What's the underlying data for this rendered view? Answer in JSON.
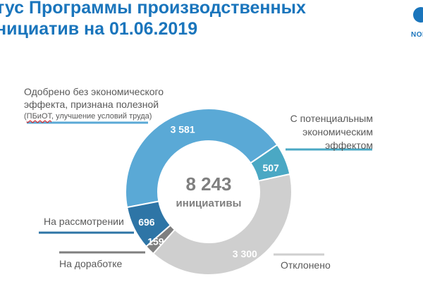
{
  "header": {
    "title_line1": "тус Программы производственных",
    "title_line2": "нициатив на 01.06.2019",
    "logo_text": "NOR"
  },
  "colors": {
    "approved": "#5aa9d6",
    "potential": "#4aa8c4",
    "rejected": "#cfcfcf",
    "rework": "#7f7f7f",
    "review": "#2e75a6",
    "title": "#1a75bc",
    "center_text": "#7f7f7f"
  },
  "chart_data": {
    "type": "pie",
    "variant": "donut",
    "total_value": "8 243",
    "total_label": "инициативы",
    "series": [
      {
        "name": "Одобрено без экономического эффекта, признана полезной (ПБиОТ, улучшение условий труда)",
        "value": 3581,
        "value_label": "3 581",
        "color": "#5aa9d6"
      },
      {
        "name": "С потенциальным экономическим эффектом",
        "value": 507,
        "value_label": "507",
        "color": "#4aa8c4"
      },
      {
        "name": "Отклонено",
        "value": 3300,
        "value_label": "3 300",
        "color": "#cfcfcf"
      },
      {
        "name": "На доработке",
        "value": 159,
        "value_label": "159",
        "color": "#7f7f7f"
      },
      {
        "name": "На рассмотрении",
        "value": 696,
        "value_label": "696",
        "color": "#2e75a6"
      }
    ]
  },
  "callouts": {
    "approved_line1": "Одобрено без экономического",
    "approved_line2": "эффекта, признана полезной",
    "approved_line3_a": "ПБиОТ",
    "approved_line3_b": ", улучшение условий труда)",
    "potential_line1": "С потенциальным",
    "potential_line2": "экономическим",
    "potential_line3": "эффектом",
    "review": "На рассмотрении",
    "rework": "На доработке",
    "rejected": "Отклонено"
  }
}
